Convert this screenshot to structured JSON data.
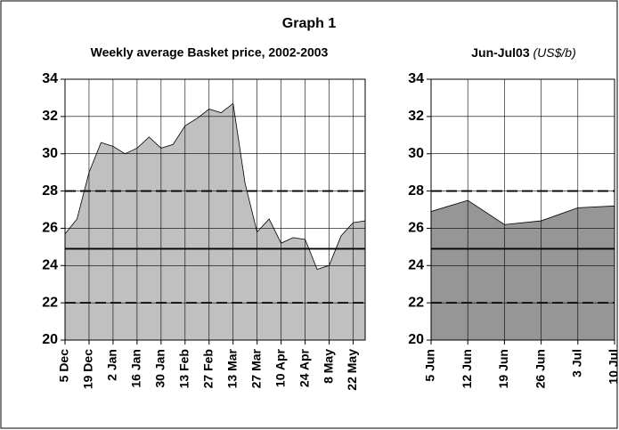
{
  "title": "Graph 1",
  "chart_data": [
    {
      "type": "area",
      "title": "Weekly average Basket price, 2002-2003",
      "categories": [
        "5 Dec",
        null,
        "19 Dec",
        null,
        "2 Jan",
        null,
        "16 Jan",
        null,
        "30 Jan",
        null,
        "13 Feb",
        null,
        "27 Feb",
        null,
        "13 Mar",
        null,
        "27 Mar",
        null,
        "10 Apr",
        null,
        "24 Apr",
        null,
        "8 May",
        null,
        "22 May",
        null
      ],
      "values": [
        25.7,
        26.5,
        29.0,
        30.6,
        30.4,
        30.0,
        30.3,
        30.9,
        30.3,
        30.5,
        31.5,
        31.9,
        32.4,
        32.2,
        32.7,
        28.4,
        25.8,
        26.5,
        25.2,
        25.5,
        25.4,
        23.8,
        24.0,
        25.6,
        26.3,
        26.4
      ],
      "color": "#c0c0c0",
      "ylim": [
        20,
        34
      ],
      "yticks": [
        20,
        22,
        24,
        26,
        28,
        30,
        32,
        34
      ],
      "grid": true,
      "reference_lines": [
        {
          "value": 28,
          "style": "dashed"
        },
        {
          "value": 24.9,
          "style": "solid"
        },
        {
          "value": 22,
          "style": "dashed"
        }
      ]
    },
    {
      "type": "area",
      "title": "Jun-Jul03",
      "unit": "(US$/b)",
      "categories": [
        "5 Jun",
        "12 Jun",
        "19 Jun",
        "26 Jun",
        "3 Jul",
        "10 Jul"
      ],
      "values": [
        26.9,
        27.5,
        26.2,
        26.4,
        27.1,
        27.2
      ],
      "color": "#969696",
      "ylim": [
        20,
        34
      ],
      "yticks": [
        20,
        22,
        24,
        26,
        28,
        30,
        32,
        34
      ],
      "grid": true,
      "reference_lines": [
        {
          "value": 28,
          "style": "dashed"
        },
        {
          "value": 24.9,
          "style": "solid"
        },
        {
          "value": 22,
          "style": "dashed"
        }
      ]
    }
  ]
}
